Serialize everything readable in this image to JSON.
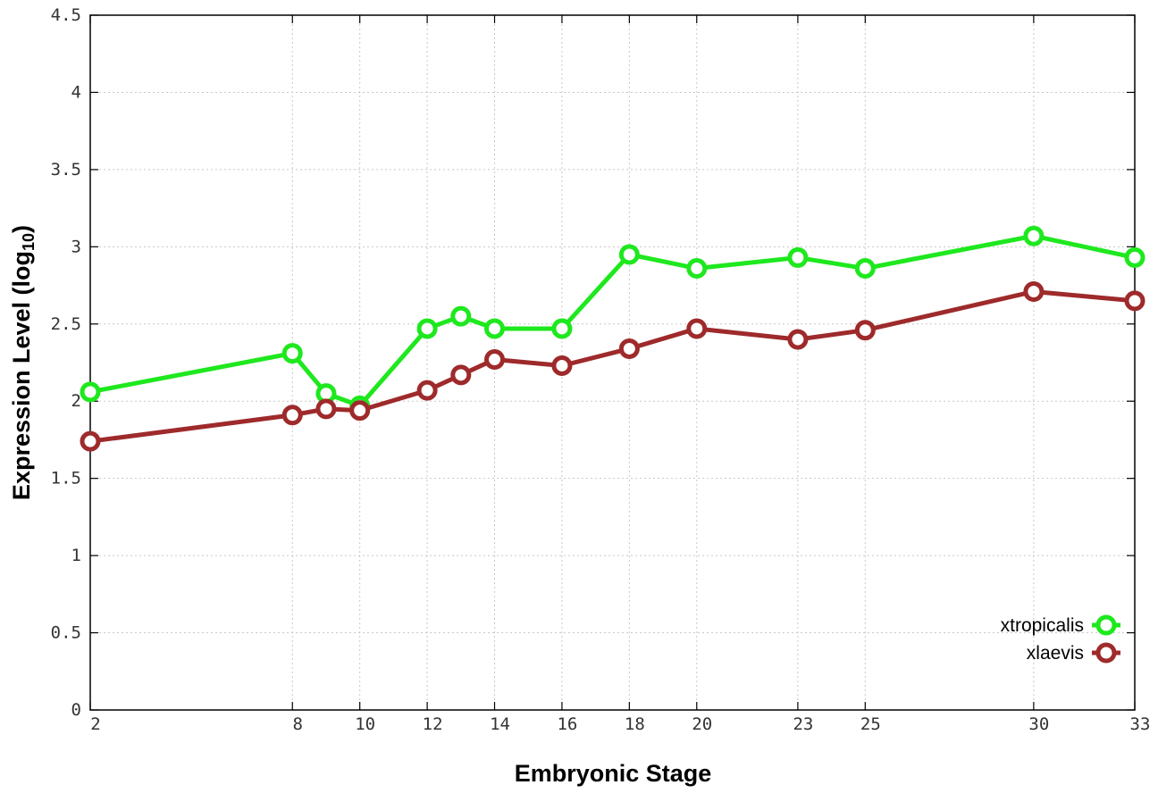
{
  "chart_data": {
    "type": "line",
    "xlabel": "Embryonic Stage",
    "ylabel_main": "Expression Level (log",
    "ylabel_sub": "10",
    "ylabel_close": ")",
    "x_ticks": [
      "2",
      "8",
      "10",
      "12",
      "14",
      "16",
      "18",
      "20",
      "23",
      "25",
      "30",
      "33"
    ],
    "y_ticks": [
      "0",
      "0.5",
      "1",
      "1.5",
      "2",
      "2.5",
      "3",
      "3.5",
      "4",
      "4.5"
    ],
    "xlim": [
      2,
      33
    ],
    "ylim": [
      0,
      4.5
    ],
    "grid": true,
    "legend_position": "bottom-right",
    "x": [
      2,
      8,
      9,
      10,
      12,
      13,
      14,
      16,
      18,
      20,
      23,
      25,
      30,
      33
    ],
    "series": [
      {
        "name": "xtropicalis",
        "color": "#1ee81e",
        "values": [
          2.06,
          2.31,
          2.05,
          1.97,
          2.47,
          2.55,
          2.47,
          2.47,
          2.95,
          2.86,
          2.93,
          2.86,
          3.07,
          2.93
        ]
      },
      {
        "name": "xlaevis",
        "color": "#9e2a2b",
        "values": [
          1.74,
          1.91,
          1.95,
          1.94,
          2.07,
          2.17,
          2.27,
          2.23,
          2.34,
          2.47,
          2.4,
          2.46,
          2.71,
          2.65
        ]
      }
    ]
  }
}
